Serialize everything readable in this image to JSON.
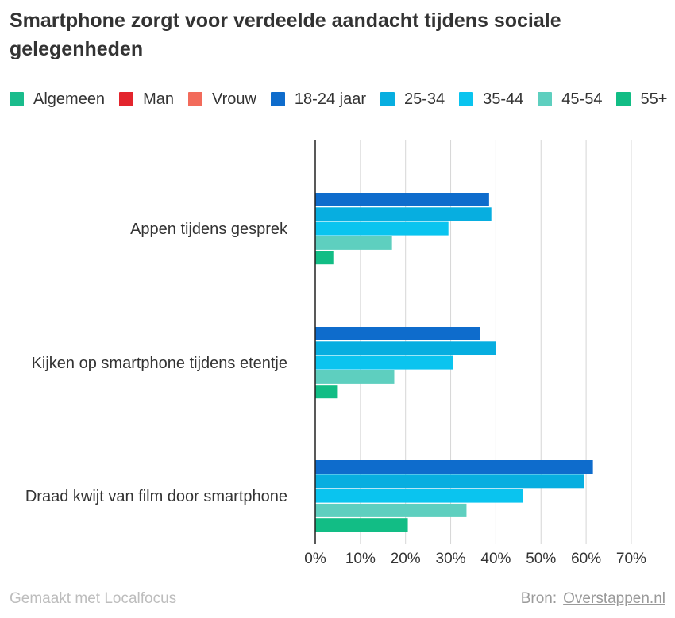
{
  "title": "Smartphone zorgt voor verdeelde aandacht tijdens sociale gelegenheden",
  "chart_data": {
    "type": "bar",
    "orientation": "horizontal",
    "title": "Smartphone zorgt voor verdeelde aandacht tijdens sociale gelegenheden",
    "categories": [
      "Appen tijdens gesprek",
      "Kijken op smartphone tijdens etentje",
      "Draad kwijt van film door smartphone"
    ],
    "series": [
      {
        "name": "Algemeen",
        "color": "#1abc8c",
        "values": [
          null,
          null,
          null
        ]
      },
      {
        "name": "Man",
        "color": "#e3252d",
        "values": [
          null,
          null,
          null
        ]
      },
      {
        "name": "Vrouw",
        "color": "#f26b5b",
        "values": [
          null,
          null,
          null
        ]
      },
      {
        "name": "18-24 jaar",
        "color": "#0e6ccc",
        "values": [
          38.5,
          36.5,
          61.5
        ]
      },
      {
        "name": "25-34",
        "color": "#07aee0",
        "values": [
          39,
          40,
          59.5
        ]
      },
      {
        "name": "35-44",
        "color": "#0ac4ef",
        "values": [
          29.5,
          30.5,
          46
        ]
      },
      {
        "name": "45-54",
        "color": "#5ecfbf",
        "values": [
          17,
          17.5,
          33.5
        ]
      },
      {
        "name": "55+",
        "color": "#12bd85",
        "values": [
          4,
          5,
          20.5
        ]
      }
    ],
    "xlim": [
      0,
      70
    ],
    "xticks": [
      "0%",
      "10%",
      "20%",
      "30%",
      "40%",
      "50%",
      "60%",
      "70%"
    ],
    "grid": true,
    "legend": "top"
  },
  "footer": {
    "credit": "Gemaakt met Localfocus",
    "source_label": "Bron:",
    "source_link": "Overstappen.nl"
  }
}
